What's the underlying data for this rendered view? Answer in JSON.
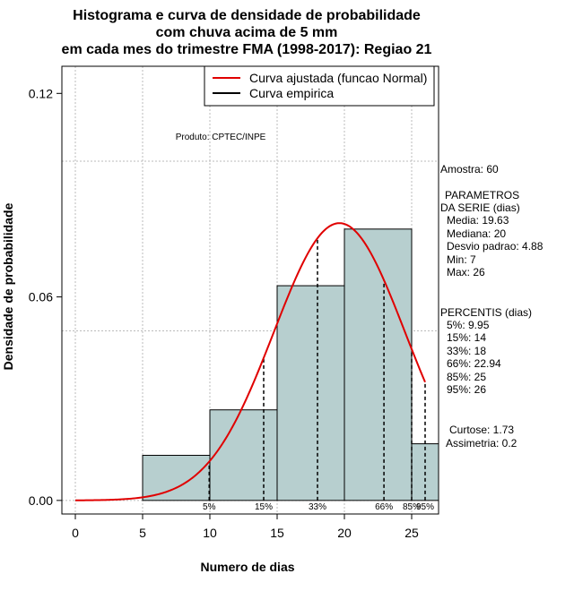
{
  "chart_data": {
    "type": "histogram",
    "title_lines": [
      "Histograma e curva de densidade de probabilidade",
      "com chuva acima de 5 mm",
      "em cada mes do trimestre FMA (1998-2017): Regiao 21"
    ],
    "xlabel": "Numero de dias",
    "ylabel": "Densidade de probabilidade",
    "xlim": [
      -1,
      27
    ],
    "ylim": [
      -0.004,
      0.128
    ],
    "x_ticks": [
      0,
      5,
      10,
      15,
      20,
      25
    ],
    "y_ticks": [
      0.0,
      0.06,
      0.12
    ],
    "y_tick_labels": [
      "0.00",
      "0.06",
      "0.12"
    ],
    "grid_x": [
      0,
      5,
      10,
      15,
      20,
      25
    ],
    "grid_y": [
      0.0,
      0.05,
      0.1
    ],
    "bins": [
      {
        "from": 5,
        "to": 10,
        "density": 0.0133
      },
      {
        "from": 10,
        "to": 15,
        "density": 0.0267
      },
      {
        "from": 15,
        "to": 20,
        "density": 0.0633
      },
      {
        "from": 20,
        "to": 25,
        "density": 0.08
      },
      {
        "from": 25,
        "to": 27,
        "density": 0.0167
      }
    ],
    "bar_color": "#b7cfcf",
    "curve_color": "#e00000",
    "normal_fit": {
      "mean": 19.63,
      "sd": 4.88,
      "x_from": 0,
      "x_to": 26
    },
    "percentile_markers": [
      {
        "label": "5%",
        "x": 9.95
      },
      {
        "label": "15%",
        "x": 14
      },
      {
        "label": "33%",
        "x": 18
      },
      {
        "label": "66%",
        "x": 22.94
      },
      {
        "label": "85%",
        "x": 25
      },
      {
        "label": "95%",
        "x": 26
      }
    ],
    "legend": [
      {
        "label": "Curva ajustada (funcao Normal)",
        "color": "#e00000"
      },
      {
        "label": "Curva empirica",
        "color": "#000000"
      }
    ],
    "product_label": "Produto: CPTEC/INPE",
    "side_info": {
      "sample": "Amostra: 60",
      "params_title_1": "PARAMETROS",
      "params_title_2": "DA SERIE (dias)",
      "params": [
        "Media: 19.63",
        "Mediana: 20",
        "Desvio padrao: 4.88",
        "Min: 7",
        "Max: 26"
      ],
      "percentis_title": "PERCENTIS (dias)",
      "percentis": [
        "5%: 9.95",
        "15%: 14",
        "33%: 18",
        "66%: 22.94",
        "85%: 25",
        "95%: 26"
      ],
      "curtose": "Curtose: 1.73",
      "assimetria": "Assimetria: 0.2"
    }
  }
}
